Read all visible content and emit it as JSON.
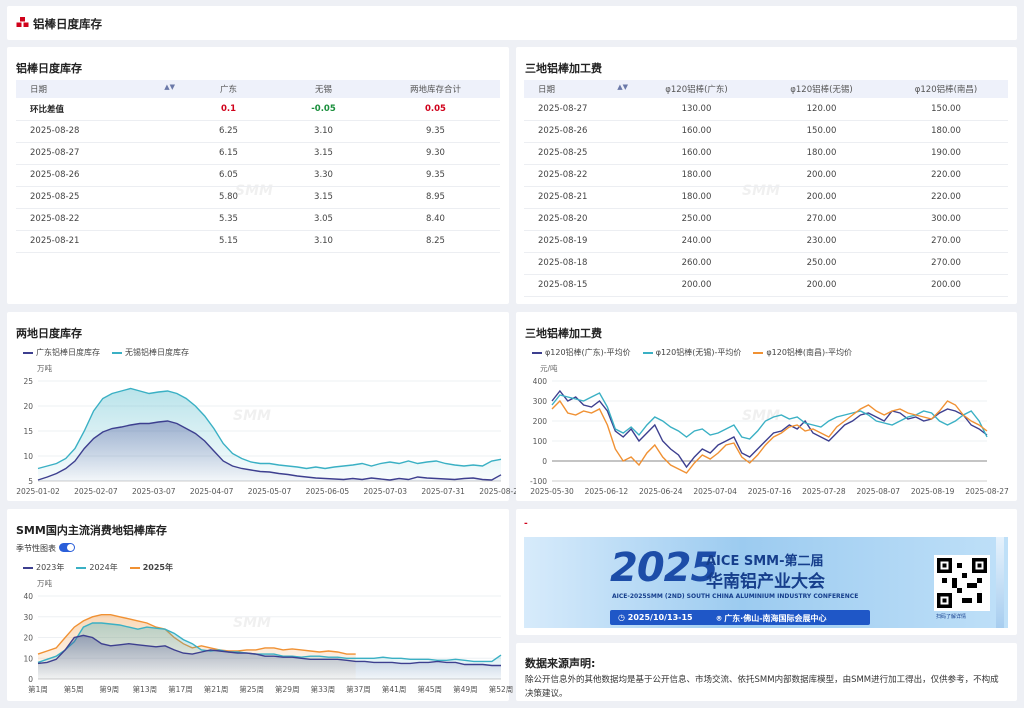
{
  "header": {
    "title": "铝棒日度库存"
  },
  "inventory_table": {
    "title": "铝棒日度库存",
    "columns": [
      "日期",
      "广东",
      "无锡",
      "两地库存合计"
    ],
    "diff_row": {
      "label": "环比差值",
      "values": [
        "0.1",
        "-0.05",
        "0.05"
      ]
    },
    "rows": [
      [
        "2025-08-28",
        "6.25",
        "3.10",
        "9.35"
      ],
      [
        "2025-08-27",
        "6.15",
        "3.15",
        "9.30"
      ],
      [
        "2025-08-26",
        "6.05",
        "3.30",
        "9.35"
      ],
      [
        "2025-08-25",
        "5.80",
        "3.15",
        "8.95"
      ],
      [
        "2025-08-22",
        "5.35",
        "3.05",
        "8.40"
      ],
      [
        "2025-08-21",
        "5.15",
        "3.10",
        "8.25"
      ]
    ]
  },
  "fee_table": {
    "title": "三地铝棒加工费",
    "columns": [
      "日期",
      "φ120铝棒(广东)",
      "φ120铝棒(无锡)",
      "φ120铝棒(南昌)"
    ],
    "rows": [
      [
        "2025-08-27",
        "130.00",
        "120.00",
        "150.00"
      ],
      [
        "2025-08-26",
        "160.00",
        "150.00",
        "180.00"
      ],
      [
        "2025-08-25",
        "160.00",
        "180.00",
        "190.00"
      ],
      [
        "2025-08-22",
        "180.00",
        "200.00",
        "220.00"
      ],
      [
        "2025-08-21",
        "180.00",
        "200.00",
        "220.00"
      ],
      [
        "2025-08-20",
        "250.00",
        "270.00",
        "300.00"
      ],
      [
        "2025-08-19",
        "240.00",
        "230.00",
        "270.00"
      ],
      [
        "2025-08-18",
        "260.00",
        "250.00",
        "270.00"
      ],
      [
        "2025-08-15",
        "200.00",
        "200.00",
        "200.00"
      ]
    ]
  },
  "watermark": "SMM",
  "chart_data": [
    {
      "type": "area",
      "title": "两地日度库存",
      "unit": "万吨",
      "ylim": [
        5,
        25
      ],
      "yticks": [
        5,
        10,
        15,
        20,
        25
      ],
      "xticks": [
        "2025-01-02",
        "2025-02-07",
        "2025-03-07",
        "2025-04-07",
        "2025-05-07",
        "2025-06-05",
        "2025-07-03",
        "2025-07-31",
        "2025-08-28"
      ],
      "legend_position": "top-left",
      "series": [
        {
          "name": "广东铝棒日度库存",
          "color": "#3d3f8f",
          "values": [
            5.2,
            5.8,
            6.5,
            7.5,
            9.0,
            11.5,
            13.5,
            14.8,
            15.5,
            15.8,
            16.2,
            16.5,
            16.5,
            16.8,
            17.0,
            16.5,
            15.5,
            14.5,
            13.0,
            11.0,
            9.0,
            8.0,
            7.5,
            7.2,
            6.9,
            6.8,
            6.5,
            6.3,
            6.0,
            5.8,
            5.6,
            5.5,
            5.4,
            5.3,
            5.5,
            5.3,
            5.6,
            5.4,
            5.2,
            5.5,
            5.3,
            5.8,
            5.6,
            5.5,
            5.4,
            5.3,
            5.5,
            5.6,
            5.3,
            5.2,
            6.25
          ]
        },
        {
          "name": "无锡铝棒日度库存",
          "color": "#3ab0c4",
          "values": [
            7.5,
            8.0,
            8.5,
            9.5,
            11.5,
            15.0,
            19.0,
            21.5,
            22.5,
            23.0,
            23.5,
            23.0,
            22.5,
            22.8,
            23.0,
            22.5,
            21.5,
            20.0,
            18.0,
            15.5,
            12.5,
            10.5,
            9.5,
            8.8,
            8.5,
            8.5,
            8.2,
            8.0,
            7.8,
            7.5,
            7.8,
            7.5,
            7.8,
            8.0,
            8.2,
            8.5,
            8.0,
            8.5,
            8.8,
            8.5,
            9.0,
            8.5,
            8.8,
            9.0,
            8.5,
            8.2,
            8.0,
            8.2,
            8.0,
            9.0,
            9.35
          ]
        }
      ]
    },
    {
      "type": "line",
      "title": "三地铝棒加工费",
      "unit": "元/吨",
      "ylim": [
        -100,
        400
      ],
      "yticks": [
        -100,
        0,
        100,
        200,
        300,
        400
      ],
      "xticks": [
        "2025-05-30",
        "2025-06-12",
        "2025-06-24",
        "2025-07-04",
        "2025-07-16",
        "2025-07-28",
        "2025-08-07",
        "2025-08-19",
        "2025-08-27"
      ],
      "legend_position": "top-left",
      "series": [
        {
          "name": "φ120铝棒(广东)-平均价",
          "color": "#3d3f8f",
          "values": [
            300,
            350,
            300,
            320,
            280,
            270,
            300,
            250,
            150,
            120,
            160,
            100,
            140,
            180,
            100,
            60,
            30,
            -30,
            20,
            60,
            40,
            80,
            100,
            120,
            40,
            20,
            60,
            100,
            140,
            150,
            180,
            160,
            200,
            140,
            120,
            100,
            140,
            180,
            200,
            230,
            240,
            220,
            200,
            250,
            240,
            210,
            220,
            200,
            210,
            240,
            260,
            250,
            230,
            180,
            160,
            130
          ]
        },
        {
          "name": "φ120铝棒(无锡)-平均价",
          "color": "#3ab0c4",
          "values": [
            280,
            330,
            320,
            310,
            300,
            320,
            340,
            270,
            160,
            140,
            170,
            130,
            180,
            220,
            200,
            170,
            150,
            120,
            150,
            160,
            130,
            140,
            160,
            180,
            120,
            110,
            150,
            200,
            220,
            230,
            210,
            220,
            190,
            180,
            170,
            200,
            220,
            230,
            240,
            250,
            230,
            200,
            190,
            180,
            200,
            220,
            230,
            250,
            240,
            200,
            180,
            200,
            230,
            250,
            200,
            120
          ]
        },
        {
          "name": "φ120铝棒(南昌)-平均价",
          "color": "#f09133",
          "values": [
            260,
            300,
            240,
            230,
            250,
            240,
            260,
            180,
            60,
            0,
            20,
            -20,
            40,
            80,
            20,
            -20,
            -40,
            -60,
            -10,
            30,
            10,
            40,
            80,
            90,
            20,
            -10,
            30,
            80,
            120,
            140,
            170,
            180,
            150,
            160,
            140,
            120,
            170,
            200,
            230,
            260,
            280,
            250,
            230,
            250,
            260,
            240,
            230,
            220,
            210,
            250,
            300,
            280,
            230,
            200,
            180,
            150
          ]
        }
      ]
    },
    {
      "type": "area",
      "title": "SMM国内主流消费地铝棒库存",
      "unit": "万吨",
      "toggle_label": "季节性图表",
      "ylim": [
        0,
        40
      ],
      "yticks": [
        0,
        10,
        20,
        30,
        40
      ],
      "xticks": [
        "第1周",
        "第5周",
        "第9周",
        "第13周",
        "第17周",
        "第21周",
        "第25周",
        "第29周",
        "第33周",
        "第37周",
        "第41周",
        "第45周",
        "第49周",
        "第52周"
      ],
      "legend_position": "top-left",
      "series": [
        {
          "name": "2023年",
          "color": "#3d3f8f",
          "values": [
            7.5,
            8,
            9.5,
            14,
            20,
            21,
            20,
            17,
            16,
            16.5,
            17,
            16.5,
            16,
            15.5,
            16,
            14,
            12.5,
            12,
            13,
            14,
            13.5,
            13,
            12.5,
            12.5,
            12,
            11,
            11,
            10.5,
            10.5,
            10,
            9.5,
            9.5,
            9.5,
            9.5,
            9,
            8.5,
            8.5,
            8,
            8,
            8,
            7.5,
            7.5,
            8,
            8,
            8.5,
            8,
            8,
            7,
            7,
            7,
            6.5,
            6.5
          ]
        },
        {
          "name": "2024年",
          "color": "#3ab0c4",
          "values": [
            8,
            9.5,
            11,
            14,
            18,
            25,
            27,
            27,
            26.5,
            26,
            25,
            24,
            25,
            24.5,
            24,
            22,
            19,
            17,
            14,
            13.5,
            14,
            13,
            13,
            12.5,
            12,
            12,
            12,
            11,
            11,
            10.5,
            11,
            11,
            10.5,
            10.5,
            10,
            10,
            10,
            10,
            10.5,
            10,
            10,
            9.5,
            9.5,
            9.5,
            9,
            9,
            9.5,
            9,
            8.5,
            8.5,
            8.5,
            11.5
          ]
        },
        {
          "name": "2025年",
          "color": "#f09133",
          "values": [
            12,
            13.5,
            15,
            20,
            25,
            28,
            30,
            31,
            31,
            30,
            29,
            28,
            27,
            25,
            24,
            20,
            17,
            15,
            16,
            15,
            14,
            13.5,
            13.5,
            14,
            14,
            15,
            15,
            14,
            14.5,
            14,
            13.5,
            13,
            13.5,
            13,
            12,
            12
          ]
        }
      ]
    }
  ],
  "banner": {
    "year": "2025",
    "line1": "AICE SMM-第二届",
    "line2": "华南铝产业大会",
    "line3": "AICE-2025SMM (2ND) SOUTH CHINA ALUMINIUM INDUSTRY CONFERENCE",
    "date": "2025/10/13-15",
    "location": "广东·佛山-南海国际会展中心",
    "qr_caption": "扫码了解详情"
  },
  "banner_card_label": "-",
  "disclaimer": {
    "title": "数据来源声明:",
    "text": "除公开信息外的其他数据均是基于公开信息、市场交流、依托SMM内部数据库模型，由SMM进行加工得出，仅供参考，不构成决策建议。"
  }
}
